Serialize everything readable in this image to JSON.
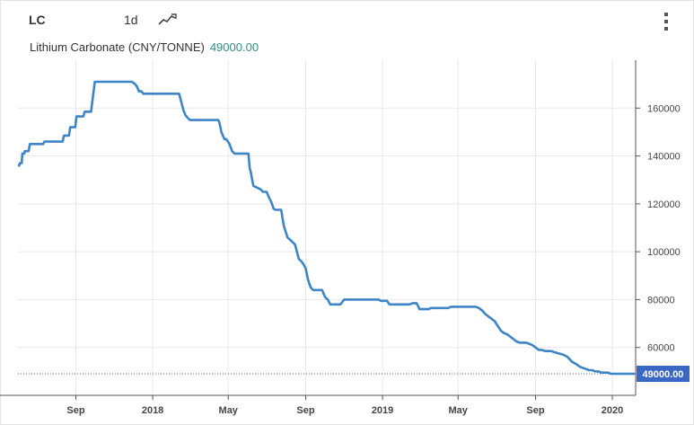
{
  "header": {
    "symbol": "LC",
    "interval": "1d",
    "chart_type_icon": "line-chart-icon",
    "menu_icon": "kebab-menu-icon",
    "description": "Lithium Carbonate (CNY/TONNE)",
    "last_value": "49000.00"
  },
  "colors": {
    "line": "#3d85c6",
    "last_label_bg": "#3b67c4",
    "last_value_text": "#2f8f7f",
    "grid": "#e8e8e8"
  },
  "chart_data": {
    "type": "line",
    "title": "",
    "xlabel": "",
    "ylabel": "",
    "x_ticks": [
      {
        "label": "Sep",
        "date": "2017-09-01"
      },
      {
        "label": "2018",
        "date": "2018-01-01"
      },
      {
        "label": "May",
        "date": "2018-05-01"
      },
      {
        "label": "Sep",
        "date": "2018-09-01"
      },
      {
        "label": "2019",
        "date": "2019-01-01"
      },
      {
        "label": "May",
        "date": "2019-05-01"
      },
      {
        "label": "Sep",
        "date": "2019-09-01"
      },
      {
        "label": "2020",
        "date": "2020-01-01"
      }
    ],
    "y_ticks": [
      60000,
      80000,
      100000,
      120000,
      140000,
      160000
    ],
    "y_tick_labels": [
      "60000",
      "80000",
      "100000",
      "120000",
      "140000",
      "160000"
    ],
    "xlim": [
      "2017-06-01",
      "2020-02-07"
    ],
    "ylim": [
      40000,
      180000
    ],
    "last_value": 49000,
    "last_value_label": "49000.00",
    "grid": true,
    "series": [
      {
        "x": [
          "2017-06-01",
          "2017-06-03",
          "2017-06-04",
          "2017-06-07",
          "2017-06-08",
          "2017-06-11",
          "2017-06-12",
          "2017-06-18",
          "2017-06-20",
          "2017-07-02",
          "2017-07-11",
          "2017-07-13",
          "2017-07-21",
          "2017-07-23",
          "2017-07-28",
          "2017-07-31",
          "2017-08-11",
          "2017-08-13",
          "2017-08-21",
          "2017-08-23",
          "2017-08-31",
          "2017-09-02",
          "2017-09-13",
          "2017-09-15",
          "2017-09-25",
          "2017-10-01",
          "2017-11-15",
          "2017-11-20",
          "2017-11-24",
          "2017-11-29",
          "2017-12-04",
          "2017-12-07",
          "2017-12-10",
          "2017-12-14",
          "2017-12-17",
          "2018-02-12",
          "2018-02-15",
          "2018-02-19",
          "2018-02-22",
          "2018-02-27",
          "2018-03-01",
          "2018-03-09",
          "2018-03-11",
          "2018-03-13",
          "2018-03-20",
          "2018-03-28",
          "2018-04-02",
          "2018-04-06",
          "2018-04-08",
          "2018-04-15",
          "2018-04-17",
          "2018-04-20",
          "2018-04-25",
          "2018-04-28",
          "2018-05-03",
          "2018-05-07",
          "2018-05-11",
          "2018-05-20",
          "2018-06-02",
          "2018-06-04",
          "2018-06-06",
          "2018-06-08",
          "2018-06-10",
          "2018-06-14",
          "2018-06-22",
          "2018-06-25",
          "2018-07-01",
          "2018-07-05",
          "2018-07-08",
          "2018-07-12",
          "2018-07-15",
          "2018-07-24",
          "2018-07-28",
          "2018-08-03",
          "2018-08-15",
          "2018-08-21",
          "2018-08-25",
          "2018-08-28",
          "2018-09-01",
          "2018-09-05",
          "2018-09-09",
          "2018-09-13",
          "2018-09-15",
          "2018-09-18",
          "2018-09-27",
          "2018-10-02",
          "2018-10-06",
          "2018-10-10",
          "2018-10-15",
          "2018-10-20",
          "2018-10-26",
          "2018-11-01",
          "2018-11-05",
          "2018-11-09",
          "2018-11-18",
          "2018-11-22",
          "2018-12-01",
          "2018-12-04",
          "2018-12-06",
          "2018-12-09",
          "2018-12-12",
          "2018-12-16",
          "2018-12-22",
          "2018-12-26",
          "2018-12-29",
          "2019-01-01",
          "2019-01-05",
          "2019-01-08",
          "2019-01-12",
          "2019-01-15",
          "2019-01-20",
          "2019-01-25",
          "2019-02-01",
          "2019-02-07",
          "2019-02-10",
          "2019-02-13",
          "2019-02-18",
          "2019-02-24",
          "2019-03-01",
          "2019-03-06",
          "2019-03-10",
          "2019-03-15",
          "2019-03-19",
          "2019-03-24",
          "2019-03-30",
          "2019-04-03",
          "2019-04-10",
          "2019-04-15",
          "2019-04-20",
          "2019-04-25",
          "2019-05-01",
          "2019-05-06",
          "2019-05-12",
          "2019-05-18",
          "2019-05-24",
          "2019-05-29",
          "2019-06-03",
          "2019-06-08",
          "2019-06-13",
          "2019-06-18",
          "2019-06-23",
          "2019-06-28",
          "2019-07-03",
          "2019-07-08",
          "2019-07-13",
          "2019-07-18",
          "2019-07-23",
          "2019-07-28",
          "2019-08-02",
          "2019-08-07",
          "2019-08-12",
          "2019-08-17",
          "2019-08-22",
          "2019-08-27",
          "2019-09-01",
          "2019-09-06",
          "2019-09-11",
          "2019-09-16",
          "2019-09-21",
          "2019-09-26",
          "2019-10-01",
          "2019-10-08",
          "2019-10-15",
          "2019-10-22",
          "2019-10-29",
          "2019-11-05",
          "2019-11-10",
          "2019-11-15",
          "2019-11-20",
          "2019-11-25",
          "2019-11-30",
          "2019-12-05",
          "2019-12-10",
          "2019-12-15",
          "2019-12-20",
          "2019-12-25",
          "2019-12-30",
          "2020-01-05",
          "2020-01-10",
          "2020-01-15",
          "2020-01-20",
          "2020-02-07"
        ],
        "y": [
          136000,
          136000,
          137000,
          137000,
          141000,
          141000,
          142000,
          142000,
          145000,
          145000,
          145000,
          146000,
          146000,
          146000,
          146000,
          146000,
          146000,
          148500,
          148500,
          152000,
          152000,
          156500,
          156500,
          158500,
          158500,
          171000,
          171000,
          171000,
          171000,
          171000,
          170000,
          169000,
          167000,
          167000,
          166000,
          166000,
          163000,
          159000,
          157000,
          155500,
          155000,
          155000,
          155000,
          155000,
          155000,
          155000,
          155000,
          155000,
          155000,
          155000,
          154000,
          150000,
          147000,
          147000,
          145000,
          142000,
          141000,
          141000,
          141000,
          135000,
          133000,
          130000,
          127500,
          127000,
          126000,
          125000,
          125000,
          122500,
          121000,
          118000,
          117500,
          117500,
          111000,
          106000,
          103000,
          97000,
          96000,
          95000,
          93000,
          88000,
          85000,
          84000,
          84000,
          84000,
          84000,
          81000,
          80000,
          78000,
          78000,
          78000,
          78000,
          80000,
          80000,
          80000,
          80000,
          80000,
          80000,
          80000,
          80000,
          80000,
          80000,
          80000,
          80000,
          80000,
          79500,
          79500,
          79500,
          79500,
          78000,
          78000,
          78000,
          78000,
          78000,
          78000,
          78000,
          78000,
          78500,
          78500,
          76000,
          76000,
          76000,
          76000,
          76500,
          76500,
          76500,
          76500,
          76500,
          76500,
          77000,
          77000,
          77000,
          77000,
          77000,
          77000,
          77000,
          77000,
          76500,
          75500,
          74000,
          73000,
          72000,
          71000,
          69000,
          67000,
          66000,
          65500,
          64500,
          63500,
          62500,
          62000,
          62000,
          62000,
          61500,
          61000,
          60000,
          59000,
          59000,
          58500,
          58500,
          58500,
          58000,
          57500,
          57000,
          56000,
          54000,
          53000,
          52000,
          51500,
          51000,
          50500,
          50500,
          50000,
          50000,
          49500,
          49500,
          49500,
          49000,
          49000,
          49000,
          49000,
          49000,
          49000
        ]
      }
    ]
  }
}
